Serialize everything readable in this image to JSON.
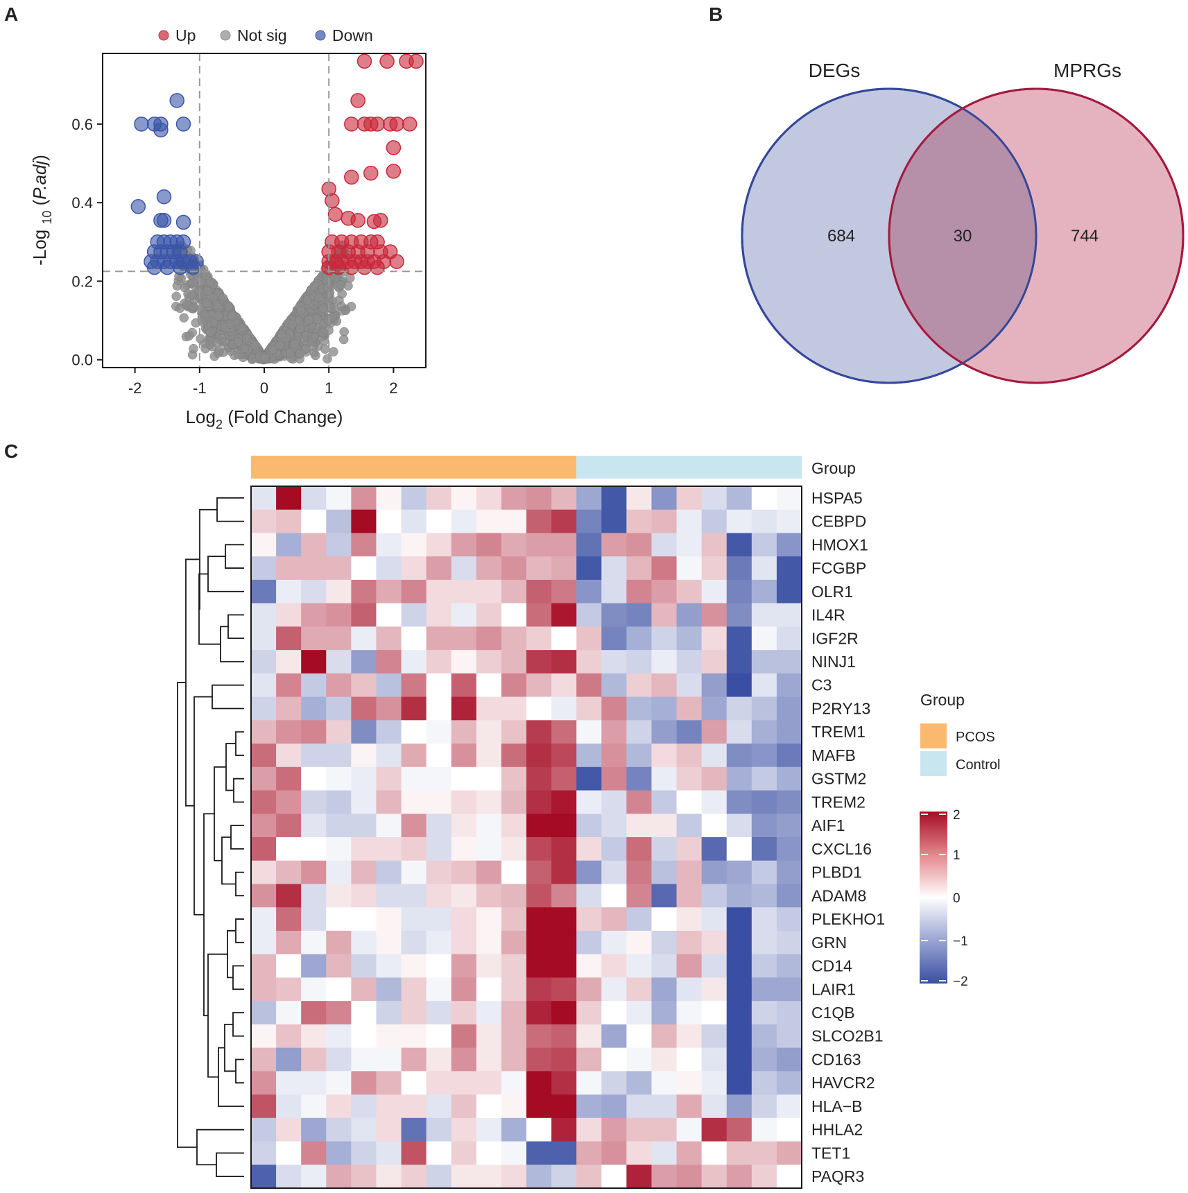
{
  "panels": {
    "a": "A",
    "b": "B",
    "c": "C"
  },
  "chart_data": [
    {
      "type": "scatter",
      "panel": "A",
      "xlabel": "Log2 (Fold Change)",
      "xlabel_parts": {
        "pre": "Log",
        "sub": "2",
        "post": " (Fold Change)"
      },
      "ylabel": "-Log10 (P.adj)",
      "ylabel_parts": {
        "pre": "-Log ",
        "sub": "10",
        "post1": " (",
        "ital": "P.adj",
        "post2": ")"
      },
      "xlim": [
        -2.5,
        2.5
      ],
      "ylim": [
        -0.02,
        0.78
      ],
      "xticks": [
        -2,
        -1,
        0,
        1,
        2
      ],
      "yticks": [
        0.0,
        0.2,
        0.4,
        0.6
      ],
      "ytick_labels": [
        "0.0",
        "0.2",
        "0.4",
        "0.6"
      ],
      "thresholds": {
        "log2fc": [
          -1,
          1
        ],
        "neglog10_padj": 0.225
      },
      "legend": [
        {
          "label": "Up",
          "color": "#c8283a"
        },
        {
          "label": "Not sig",
          "color": "#8c8c8c"
        },
        {
          "label": "Down",
          "color": "#3a55a8"
        }
      ],
      "series": [
        {
          "name": "Up",
          "color": "#c8283a",
          "points": [
            [
              1.55,
              0.76
            ],
            [
              1.9,
              0.76
            ],
            [
              2.2,
              0.76
            ],
            [
              2.35,
              0.76
            ],
            [
              1.45,
              0.66
            ],
            [
              1.35,
              0.6
            ],
            [
              1.55,
              0.6
            ],
            [
              1.65,
              0.6
            ],
            [
              1.75,
              0.6
            ],
            [
              1.95,
              0.6
            ],
            [
              2.05,
              0.6
            ],
            [
              2.25,
              0.6
            ],
            [
              2.0,
              0.54
            ],
            [
              2.0,
              0.48
            ],
            [
              1.65,
              0.475
            ],
            [
              1.35,
              0.465
            ],
            [
              1.0,
              0.435
            ],
            [
              1.05,
              0.405
            ],
            [
              1.1,
              0.37
            ],
            [
              1.3,
              0.36
            ],
            [
              1.45,
              0.355
            ],
            [
              1.8,
              0.355
            ],
            [
              1.7,
              0.352
            ],
            [
              1.05,
              0.3
            ],
            [
              1.2,
              0.3
            ],
            [
              1.35,
              0.3
            ],
            [
              1.5,
              0.3
            ],
            [
              1.65,
              0.3
            ],
            [
              1.75,
              0.3
            ],
            [
              1.0,
              0.275
            ],
            [
              1.15,
              0.275
            ],
            [
              1.3,
              0.275
            ],
            [
              1.45,
              0.275
            ],
            [
              1.6,
              0.275
            ],
            [
              1.8,
              0.275
            ],
            [
              1.95,
              0.275
            ],
            [
              1.0,
              0.25
            ],
            [
              1.1,
              0.25
            ],
            [
              1.2,
              0.25
            ],
            [
              1.3,
              0.25
            ],
            [
              1.4,
              0.25
            ],
            [
              1.5,
              0.25
            ],
            [
              1.6,
              0.25
            ],
            [
              1.7,
              0.25
            ],
            [
              1.85,
              0.25
            ],
            [
              2.05,
              0.25
            ],
            [
              1.0,
              0.235
            ],
            [
              1.15,
              0.235
            ],
            [
              1.35,
              0.235
            ],
            [
              1.55,
              0.235
            ],
            [
              1.75,
              0.235
            ]
          ]
        },
        {
          "name": "Down",
          "color": "#3a55a8",
          "points": [
            [
              -1.35,
              0.66
            ],
            [
              -1.9,
              0.6
            ],
            [
              -1.7,
              0.6
            ],
            [
              -1.6,
              0.6
            ],
            [
              -1.25,
              0.6
            ],
            [
              -1.6,
              0.585
            ],
            [
              -1.55,
              0.415
            ],
            [
              -1.95,
              0.39
            ],
            [
              -1.6,
              0.355
            ],
            [
              -1.55,
              0.355
            ],
            [
              -1.25,
              0.35
            ],
            [
              -1.65,
              0.3
            ],
            [
              -1.55,
              0.3
            ],
            [
              -1.45,
              0.3
            ],
            [
              -1.35,
              0.3
            ],
            [
              -1.25,
              0.3
            ],
            [
              -1.7,
              0.275
            ],
            [
              -1.6,
              0.275
            ],
            [
              -1.5,
              0.275
            ],
            [
              -1.4,
              0.275
            ],
            [
              -1.3,
              0.275
            ],
            [
              -1.75,
              0.25
            ],
            [
              -1.65,
              0.25
            ],
            [
              -1.55,
              0.25
            ],
            [
              -1.45,
              0.25
            ],
            [
              -1.35,
              0.25
            ],
            [
              -1.25,
              0.25
            ],
            [
              -1.15,
              0.25
            ],
            [
              -1.05,
              0.25
            ],
            [
              -1.7,
              0.235
            ],
            [
              -1.5,
              0.235
            ],
            [
              -1.3,
              0.235
            ],
            [
              -1.1,
              0.235
            ]
          ]
        },
        {
          "name": "Not sig",
          "color": "#8c8c8c",
          "envelope": "v-shaped cloud, |log2FC| <= ~1.4, -log10(P.adj) up to ~0.3",
          "generated": true
        }
      ]
    },
    {
      "type": "venn",
      "panel": "B",
      "sets": [
        {
          "label": "DEGs",
          "only": 684,
          "fill": "#c3c8e1",
          "stroke": "#34479a"
        },
        {
          "label": "MPRGs",
          "only": 744,
          "fill": "#e5b3bf",
          "stroke": "#a31a3c"
        }
      ],
      "intersection": 30,
      "overlap_fill": "#b68fa9"
    },
    {
      "type": "heatmap",
      "panel": "C",
      "group_title": "Group",
      "groups": [
        {
          "name": "PCOS",
          "n": 13,
          "color": "#fbb96f"
        },
        {
          "name": "Control",
          "n": 9,
          "color": "#c8e6ef"
        }
      ],
      "colorbar": {
        "min": -2,
        "max": 2,
        "ticks": [
          2,
          1,
          0,
          -1,
          -2
        ],
        "tick_labels": [
          "2",
          "1",
          "0",
          "−1",
          "−2"
        ],
        "low": "#3a4fa3",
        "mid": "#ffffff",
        "high": "#a50b23"
      },
      "rows": [
        "HSPA5",
        "CEBPD",
        "HMOX1",
        "FCGBP",
        "OLR1",
        "IL4R",
        "IGF2R",
        "NINJ1",
        "C3",
        "P2RY13",
        "TREM1",
        "MAFB",
        "GSTM2",
        "TREM2",
        "AIF1",
        "CXCL16",
        "PLBD1",
        "ADAM8",
        "PLEKHO1",
        "GRN",
        "CD14",
        "LAIR1",
        "C1QB",
        "SLCO2B1",
        "CD163",
        "HAVCR2",
        "HLA−B",
        "HHLA2",
        "TET1",
        "PAQR3"
      ],
      "values": [
        [
          -0.3,
          2.0,
          -0.4,
          -0.1,
          0.9,
          0.1,
          -0.6,
          0.4,
          0.1,
          0.3,
          0.8,
          0.9,
          0.6,
          -1.0,
          -1.9,
          0.2,
          -1.2,
          0.4,
          -0.4,
          -0.8,
          0.0,
          -0.1
        ],
        [
          0.4,
          0.5,
          0.0,
          -0.7,
          2.0,
          0.0,
          -0.3,
          0.0,
          -0.2,
          0.1,
          0.1,
          1.3,
          1.6,
          -1.4,
          -1.9,
          0.5,
          0.6,
          -0.2,
          -0.6,
          -0.2,
          -0.3,
          -0.2
        ],
        [
          0.1,
          -0.9,
          0.6,
          -0.6,
          1.0,
          -0.2,
          0.1,
          0.3,
          0.8,
          1.0,
          0.7,
          0.8,
          0.8,
          -1.6,
          0.8,
          0.9,
          -0.4,
          -0.2,
          0.5,
          -1.9,
          -0.6,
          -1.2
        ],
        [
          -0.6,
          0.6,
          0.6,
          0.6,
          0.0,
          -0.4,
          0.3,
          0.8,
          -0.4,
          0.7,
          0.9,
          0.6,
          0.7,
          -1.9,
          -0.4,
          0.6,
          1.1,
          -0.1,
          0.4,
          -1.5,
          -0.3,
          -1.9
        ],
        [
          -1.5,
          -0.2,
          -0.4,
          0.2,
          1.1,
          0.7,
          1.0,
          0.3,
          0.3,
          0.3,
          0.6,
          1.3,
          1.1,
          -1.2,
          -0.4,
          1.0,
          0.8,
          0.5,
          -0.2,
          -1.4,
          -0.9,
          -1.9
        ],
        [
          -0.3,
          0.3,
          0.8,
          0.9,
          1.3,
          0.0,
          -0.5,
          0.3,
          -0.2,
          0.4,
          0.0,
          1.2,
          1.9,
          -0.6,
          -1.3,
          -1.4,
          0.6,
          -1.1,
          0.9,
          -1.3,
          -0.3,
          -0.3
        ],
        [
          -0.3,
          1.3,
          0.7,
          0.7,
          -0.2,
          0.6,
          0.0,
          0.7,
          0.7,
          0.9,
          0.6,
          0.4,
          0.0,
          0.5,
          -1.4,
          -0.9,
          -0.5,
          -0.8,
          0.3,
          -1.9,
          -0.1,
          -0.4
        ],
        [
          -0.5,
          0.2,
          2.0,
          -0.4,
          -1.1,
          1.0,
          -0.2,
          0.4,
          0.1,
          0.4,
          0.6,
          1.6,
          1.7,
          0.4,
          -0.4,
          -0.5,
          -0.2,
          -0.5,
          0.4,
          -1.9,
          -0.7,
          -0.7
        ],
        [
          -0.3,
          1.0,
          -0.6,
          0.8,
          0.5,
          -0.7,
          1.1,
          0.0,
          1.3,
          0.0,
          1.0,
          0.6,
          0.3,
          1.1,
          -0.8,
          0.4,
          0.6,
          -0.4,
          -1.1,
          -2.0,
          -0.3,
          -1.0
        ],
        [
          -0.5,
          0.6,
          -0.9,
          -0.6,
          1.2,
          0.9,
          1.7,
          0.0,
          1.8,
          0.3,
          0.3,
          0.0,
          -0.2,
          0.4,
          1.0,
          -0.8,
          -0.9,
          0.6,
          -1.0,
          -0.5,
          -0.7,
          -1.1
        ],
        [
          0.6,
          0.9,
          1.0,
          0.4,
          -1.3,
          -0.6,
          0.0,
          -0.1,
          0.6,
          0.2,
          0.5,
          1.6,
          1.2,
          -0.1,
          0.8,
          -0.5,
          -1.1,
          -1.4,
          0.8,
          -0.4,
          -0.9,
          -1.1
        ],
        [
          1.2,
          0.3,
          -0.5,
          -0.5,
          0.1,
          -0.3,
          0.7,
          0.0,
          0.9,
          0.2,
          1.2,
          1.7,
          1.5,
          -0.8,
          0.9,
          -0.8,
          0.3,
          0.5,
          -0.3,
          -1.3,
          -1.2,
          -1.5
        ],
        [
          0.8,
          1.2,
          0.0,
          -0.1,
          -0.2,
          0.4,
          -0.1,
          -0.1,
          0.0,
          0.0,
          0.5,
          1.6,
          1.3,
          -1.9,
          1.0,
          -1.4,
          -0.2,
          0.4,
          0.6,
          -0.9,
          -0.6,
          -0.9
        ],
        [
          1.2,
          0.9,
          -0.5,
          -0.6,
          -0.2,
          0.6,
          0.1,
          0.1,
          0.3,
          0.2,
          0.6,
          1.7,
          1.9,
          -0.2,
          -0.4,
          1.0,
          -0.6,
          0.0,
          -0.2,
          -1.3,
          -1.4,
          -1.3
        ],
        [
          0.9,
          1.2,
          -0.3,
          -0.5,
          -0.5,
          -0.1,
          0.9,
          -0.4,
          0.2,
          -0.1,
          0.3,
          2.0,
          2.0,
          -0.6,
          -0.4,
          0.2,
          0.2,
          -0.6,
          0.0,
          -0.4,
          -1.2,
          -1.1
        ],
        [
          1.3,
          0.0,
          0.0,
          -0.1,
          0.3,
          0.3,
          0.4,
          -0.4,
          0.1,
          -0.1,
          0.2,
          1.5,
          1.7,
          0.3,
          -0.6,
          1.2,
          -0.5,
          0.4,
          -1.7,
          0.0,
          -1.6,
          -1.2
        ],
        [
          0.3,
          0.6,
          0.9,
          -0.2,
          0.6,
          -0.6,
          -0.1,
          0.4,
          0.5,
          0.8,
          0.0,
          1.3,
          1.7,
          -1.2,
          -0.4,
          1.1,
          -0.7,
          0.6,
          -1.1,
          -1.0,
          -0.6,
          -1.1
        ],
        [
          0.9,
          1.7,
          -0.4,
          0.2,
          0.3,
          -0.4,
          -0.4,
          0.3,
          0.2,
          0.5,
          0.6,
          1.4,
          1.0,
          -0.4,
          0.0,
          1.0,
          -1.7,
          0.6,
          -0.6,
          -0.9,
          -0.8,
          -1.2
        ],
        [
          -0.2,
          1.2,
          -0.4,
          0.0,
          0.0,
          0.1,
          -0.3,
          -0.3,
          0.3,
          0.1,
          0.5,
          2.0,
          2.0,
          0.4,
          0.6,
          -0.6,
          0.0,
          0.2,
          -0.3,
          -2.0,
          -0.4,
          -0.6
        ],
        [
          -0.2,
          0.7,
          -0.1,
          0.7,
          -0.2,
          0.1,
          -0.4,
          -0.2,
          0.3,
          0.1,
          0.7,
          2.0,
          2.0,
          -0.6,
          -0.2,
          0.1,
          -0.5,
          0.5,
          0.3,
          -2.0,
          -0.4,
          -0.5
        ],
        [
          0.6,
          0.0,
          -1.0,
          0.6,
          -0.5,
          -0.2,
          0.1,
          0.0,
          0.8,
          0.2,
          0.4,
          2.0,
          2.0,
          0.1,
          0.3,
          -0.2,
          -0.4,
          0.8,
          -0.4,
          -2.0,
          -0.6,
          -0.8
        ],
        [
          0.6,
          0.5,
          -0.1,
          0.0,
          0.6,
          -0.8,
          0.4,
          -0.1,
          0.9,
          0.0,
          0.4,
          1.6,
          1.5,
          0.7,
          -0.2,
          0.4,
          -1.0,
          -0.3,
          0.2,
          -2.0,
          -1.0,
          -1.0
        ],
        [
          -0.7,
          -0.1,
          1.2,
          1.0,
          0.0,
          -0.5,
          0.4,
          -0.4,
          0.4,
          -0.2,
          0.6,
          1.8,
          2.0,
          0.4,
          0.0,
          -0.2,
          -0.9,
          -0.1,
          0.0,
          -2.0,
          -0.5,
          -0.6
        ],
        [
          0.1,
          0.5,
          0.2,
          -0.2,
          0.0,
          0.1,
          0.1,
          0.0,
          1.1,
          0.2,
          0.6,
          1.2,
          1.3,
          0.2,
          -1.0,
          0.0,
          0.6,
          0.2,
          -0.5,
          -2.0,
          -0.8,
          -0.6
        ],
        [
          0.6,
          -1.1,
          0.5,
          -0.4,
          -0.1,
          -0.1,
          0.7,
          0.2,
          0.9,
          0.2,
          0.6,
          1.4,
          1.5,
          0.6,
          0.0,
          -0.1,
          0.2,
          0.0,
          -0.3,
          -2.0,
          -0.9,
          -1.1
        ],
        [
          0.9,
          -0.2,
          -0.2,
          -0.1,
          0.9,
          0.6,
          0.0,
          0.3,
          0.3,
          0.3,
          -0.1,
          2.0,
          1.7,
          -0.1,
          -0.5,
          -0.8,
          -0.1,
          0.1,
          -0.2,
          -2.0,
          -0.6,
          -0.8
        ],
        [
          1.4,
          -0.3,
          -0.1,
          0.3,
          -0.4,
          0.3,
          0.3,
          -0.3,
          0.5,
          0.0,
          0.1,
          2.0,
          2.0,
          -0.9,
          -1.0,
          -0.4,
          -0.4,
          0.7,
          -0.3,
          -1.1,
          -0.5,
          -0.2
        ],
        [
          -0.6,
          0.3,
          -1.0,
          -0.5,
          -0.3,
          0.3,
          -1.6,
          -0.5,
          0.3,
          -0.2,
          -0.9,
          0.0,
          1.8,
          0.3,
          0.8,
          0.5,
          0.5,
          -0.1,
          1.7,
          1.3,
          -0.1,
          0.0
        ],
        [
          -0.5,
          0.0,
          1.0,
          -0.9,
          -0.5,
          -0.3,
          1.4,
          0.0,
          0.4,
          0.0,
          -0.1,
          -1.8,
          -1.8,
          0.7,
          0.9,
          0.3,
          -0.3,
          0.7,
          0.0,
          0.5,
          0.5,
          0.7
        ],
        [
          -1.8,
          -0.4,
          -0.2,
          0.7,
          0.5,
          0.2,
          0.4,
          -0.5,
          0.2,
          0.2,
          0.3,
          -0.8,
          -0.5,
          0.5,
          0.0,
          1.8,
          0.8,
          0.9,
          0.5,
          0.8,
          0.4,
          0.0
        ]
      ],
      "dendrogram": "rows clustered (hierarchical)"
    }
  ]
}
